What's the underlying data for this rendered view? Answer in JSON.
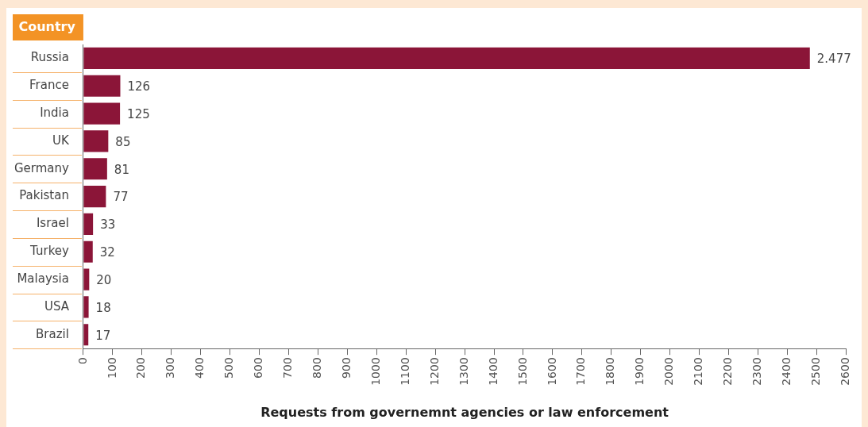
{
  "chart_data": {
    "type": "bar",
    "orientation": "horizontal",
    "ylabel": "Country",
    "xlabel": "Requests from governemnt agencies or law enforcement",
    "categories": [
      "Russia",
      "France",
      "India",
      "UK",
      "Germany",
      "Pakistan",
      "Israel",
      "Turkey",
      "Malaysia",
      "USA",
      "Brazil"
    ],
    "values": [
      2477,
      126,
      125,
      85,
      81,
      77,
      33,
      32,
      20,
      18,
      17
    ],
    "value_labels": [
      "2.477",
      "126",
      "125",
      "85",
      "81",
      "77",
      "33",
      "32",
      "20",
      "18",
      "17"
    ],
    "color": "#8b1538",
    "xlim": [
      0,
      2600
    ],
    "xticks": [
      0,
      100,
      200,
      300,
      400,
      500,
      600,
      700,
      800,
      900,
      1000,
      1100,
      1200,
      1300,
      1400,
      1500,
      1600,
      1700,
      1800,
      1900,
      2000,
      2100,
      2200,
      2300,
      2400,
      2500,
      2600
    ],
    "grid": false,
    "legend": false
  }
}
